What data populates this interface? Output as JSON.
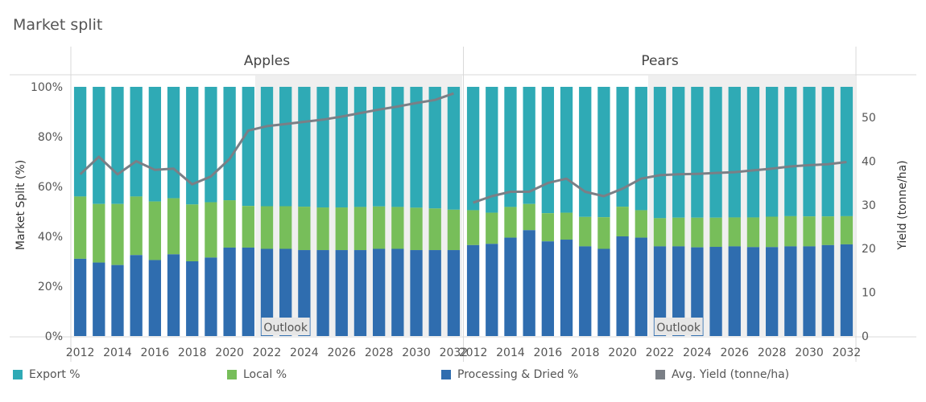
{
  "chart_data": {
    "type": "bar",
    "title": "Market split",
    "years": [
      2012,
      2013,
      2014,
      2015,
      2016,
      2017,
      2018,
      2019,
      2020,
      2021,
      2022,
      2023,
      2024,
      2025,
      2026,
      2027,
      2028,
      2029,
      2030,
      2031,
      2032
    ],
    "x_tick_labels": [
      "2012",
      "2014",
      "2016",
      "2018",
      "2020",
      "2022",
      "2024",
      "2026",
      "2028",
      "2030",
      "2032"
    ],
    "ylabel_left": "Market Split (%)",
    "ylabel_right": "Yield (tonne/ha)",
    "y_left_ticks": [
      "100%",
      "80%",
      "60%",
      "40%",
      "20%",
      "0%"
    ],
    "y_left_range": [
      0,
      100
    ],
    "y_right_ticks": [
      "50",
      "40",
      "30",
      "20",
      "10",
      "0"
    ],
    "y_right_range": [
      0,
      57
    ],
    "outlook_label": "Outlook",
    "outlook_start_year": 2022,
    "colors": {
      "export": "#2FAAB5",
      "local": "#77BE5A",
      "processing": "#2F6DAF",
      "yield": "#7A7F86"
    },
    "legend": [
      {
        "key": "export",
        "label": "Export %"
      },
      {
        "key": "local",
        "label": "Local %"
      },
      {
        "key": "processing",
        "label": "Processing & Dried %"
      },
      {
        "key": "yield",
        "label": "Avg. Yield (tonne/ha)"
      }
    ],
    "panels": [
      {
        "name": "Apples",
        "processing": [
          31,
          29.5,
          28.5,
          32.5,
          30.5,
          32.8,
          30,
          31.5,
          35.5,
          35.5,
          35,
          35,
          34.5,
          34.5,
          34.5,
          34.5,
          35,
          35,
          34.5,
          34.5,
          34.5
        ],
        "local": [
          25,
          23.5,
          24.5,
          23.5,
          23.5,
          22.5,
          22.8,
          22.2,
          19,
          16.7,
          17.1,
          17.1,
          17.4,
          17.1,
          17.1,
          17.3,
          17,
          16.8,
          17,
          16.7,
          16.2
        ],
        "yield": [
          37,
          41,
          37,
          40,
          38,
          38.3,
          34.7,
          36.5,
          40.5,
          47,
          48,
          48.5,
          49,
          49.5,
          50.2,
          51,
          51.8,
          52.5,
          53.3,
          54,
          55.5
        ]
      },
      {
        "name": "Pears",
        "processing": [
          36.5,
          37,
          39.5,
          42.5,
          38,
          38.7,
          36,
          35,
          40,
          39.5,
          36,
          36,
          35.6,
          35.8,
          36,
          35.7,
          35.7,
          36,
          36,
          36.5,
          36.8
        ],
        "local": [
          14,
          12.5,
          12.3,
          10.5,
          11.3,
          10.8,
          11.8,
          12.7,
          11.9,
          11,
          11.3,
          11.5,
          11.9,
          11.7,
          11.6,
          11.9,
          12.2,
          12.1,
          12,
          11.5,
          11.3
        ],
        "yield": [
          30.5,
          32,
          33,
          33,
          35,
          36,
          33,
          32,
          33.7,
          36,
          36.8,
          37,
          37.1,
          37.3,
          37.5,
          37.9,
          38.3,
          38.8,
          39.1,
          39.3,
          39.8
        ]
      }
    ]
  }
}
